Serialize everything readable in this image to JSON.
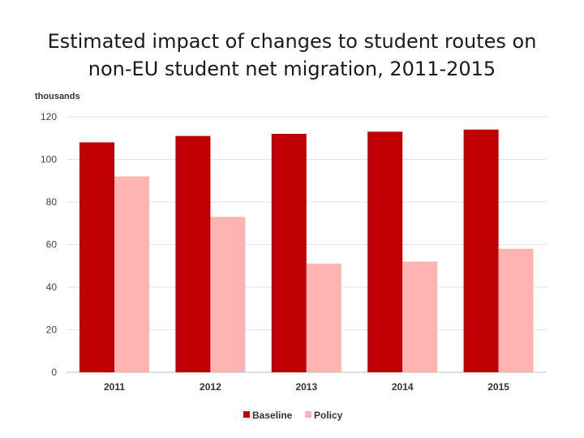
{
  "chart_data": {
    "type": "bar",
    "title": "Estimated impact of changes to student routes on non-EU student net migration, 2011-2015",
    "title_lines": [
      "Estimated impact of changes to student routes on",
      "non-EU student net migration, 2011-2015"
    ],
    "ylabel": "thousands",
    "xlabel": "",
    "ylim": [
      0,
      120
    ],
    "yticks": [
      0,
      20,
      40,
      60,
      80,
      100,
      120
    ],
    "categories": [
      "2011",
      "2012",
      "2013",
      "2014",
      "2015"
    ],
    "series": [
      {
        "name": "Baseline",
        "color": "#c00000",
        "values": [
          108,
          111,
          112,
          113,
          114
        ]
      },
      {
        "name": "Policy",
        "color": "#ffb3b3",
        "values": [
          92,
          73,
          51,
          52,
          58
        ]
      }
    ],
    "grid": true,
    "legend_position": "bottom"
  }
}
